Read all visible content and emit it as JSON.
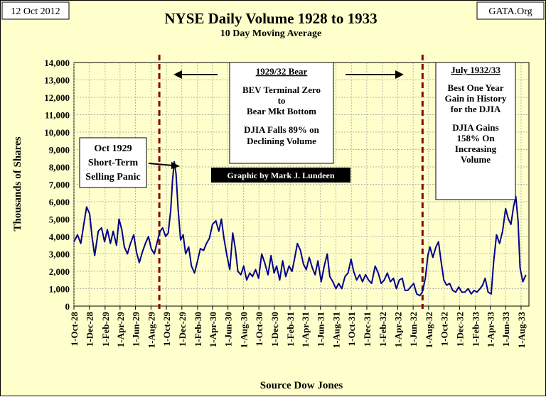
{
  "header": {
    "date": "12 Oct 2012",
    "brand": "GATA.Org"
  },
  "chart_data": {
    "type": "line",
    "title": "NYSE Daily Volume 1928 to 1933",
    "subtitle": "10 Day Moving Average",
    "ylabel": "Thousands of Shares",
    "xlabel": "Source Dow Jones",
    "ylim": [
      0,
      14000
    ],
    "yticks": [
      "0",
      "1,000",
      "2,000",
      "3,000",
      "4,000",
      "5,000",
      "6,000",
      "7,000",
      "8,000",
      "9,000",
      "10,000",
      "11,000",
      "12,000",
      "13,000",
      "14,000"
    ],
    "xlim": [
      "1928-10-01",
      "1933-09-01"
    ],
    "x_tick_labels": [
      "1-Oct-28",
      "1-Dec-28",
      "1-Feb-29",
      "1-Apr-29",
      "1-Jun-29",
      "1-Aug-29",
      "1-Oct-29",
      "1-Dec-29",
      "1-Feb-30",
      "1-Apr-30",
      "1-Jun-30",
      "1-Aug-30",
      "1-Oct-30",
      "1-Dec-30",
      "1-Feb-31",
      "1-Apr-31",
      "1-Jun-31",
      "1-Aug-31",
      "1-Oct-31",
      "1-Dec-31",
      "1-Feb-32",
      "1-Apr-32",
      "1-Jun-32",
      "1-Aug-32",
      "1-Oct-32",
      "1-Dec-32",
      "1-Feb-33",
      "1-Apr-33",
      "1-Jun-33",
      "1-Aug-33"
    ],
    "grid": true,
    "series": [
      {
        "color": "#00008b",
        "points": [
          [
            "1928-10-01",
            3700
          ],
          [
            "1928-10-15",
            4100
          ],
          [
            "1928-10-28",
            3600
          ],
          [
            "1928-11-08",
            4600
          ],
          [
            "1928-11-20",
            5700
          ],
          [
            "1928-12-02",
            5300
          ],
          [
            "1928-12-12",
            3900
          ],
          [
            "1928-12-22",
            2900
          ],
          [
            "1929-01-05",
            4300
          ],
          [
            "1929-01-18",
            4500
          ],
          [
            "1929-01-30",
            3700
          ],
          [
            "1929-02-10",
            4400
          ],
          [
            "1929-02-22",
            3600
          ],
          [
            "1929-03-05",
            4300
          ],
          [
            "1929-03-18",
            3500
          ],
          [
            "1929-03-28",
            5000
          ],
          [
            "1929-04-08",
            4400
          ],
          [
            "1929-04-18",
            3400
          ],
          [
            "1929-04-30",
            3000
          ],
          [
            "1929-05-12",
            3600
          ],
          [
            "1929-05-25",
            4100
          ],
          [
            "1929-06-05",
            3100
          ],
          [
            "1929-06-16",
            2500
          ],
          [
            "1929-06-28",
            3100
          ],
          [
            "1929-07-10",
            3600
          ],
          [
            "1929-07-22",
            4000
          ],
          [
            "1929-08-02",
            3300
          ],
          [
            "1929-08-14",
            3000
          ],
          [
            "1929-08-26",
            3700
          ],
          [
            "1929-09-06",
            4300
          ],
          [
            "1929-09-16",
            4500
          ],
          [
            "1929-09-28",
            4000
          ],
          [
            "1929-10-08",
            4200
          ],
          [
            "1929-10-18",
            5500
          ],
          [
            "1929-10-25",
            7200
          ],
          [
            "1929-11-01",
            8300
          ],
          [
            "1929-11-08",
            7600
          ],
          [
            "1929-11-16",
            5600
          ],
          [
            "1929-11-26",
            3800
          ],
          [
            "1929-12-06",
            4100
          ],
          [
            "1929-12-16",
            3000
          ],
          [
            "1929-12-28",
            3400
          ],
          [
            "1930-01-08",
            2300
          ],
          [
            "1930-01-20",
            1900
          ],
          [
            "1930-02-01",
            2600
          ],
          [
            "1930-02-12",
            3300
          ],
          [
            "1930-02-25",
            3200
          ],
          [
            "1930-03-08",
            3600
          ],
          [
            "1930-03-20",
            3900
          ],
          [
            "1930-04-01",
            4700
          ],
          [
            "1930-04-14",
            4900
          ],
          [
            "1930-04-26",
            4300
          ],
          [
            "1930-05-06",
            5000
          ],
          [
            "1930-05-16",
            3900
          ],
          [
            "1930-05-28",
            2900
          ],
          [
            "1930-06-08",
            2100
          ],
          [
            "1930-06-20",
            4200
          ],
          [
            "1930-06-30",
            3300
          ],
          [
            "1930-07-10",
            2000
          ],
          [
            "1930-07-22",
            1800
          ],
          [
            "1930-08-02",
            2300
          ],
          [
            "1930-08-14",
            1500
          ],
          [
            "1930-08-26",
            1900
          ],
          [
            "1930-09-06",
            1700
          ],
          [
            "1930-09-18",
            2100
          ],
          [
            "1930-09-30",
            1600
          ],
          [
            "1930-10-12",
            3000
          ],
          [
            "1930-10-24",
            2500
          ],
          [
            "1930-11-06",
            1800
          ],
          [
            "1930-11-18",
            2900
          ],
          [
            "1930-11-30",
            1900
          ],
          [
            "1930-12-10",
            2300
          ],
          [
            "1930-12-22",
            1500
          ],
          [
            "1931-01-03",
            2600
          ],
          [
            "1931-01-15",
            1700
          ],
          [
            "1931-01-28",
            2300
          ],
          [
            "1931-02-09",
            2000
          ],
          [
            "1931-02-20",
            2800
          ],
          [
            "1931-03-02",
            3600
          ],
          [
            "1931-03-14",
            3200
          ],
          [
            "1931-03-26",
            2400
          ],
          [
            "1931-04-06",
            2100
          ],
          [
            "1931-04-18",
            2800
          ],
          [
            "1931-04-30",
            2200
          ],
          [
            "1931-05-11",
            1800
          ],
          [
            "1931-05-22",
            2600
          ],
          [
            "1931-06-04",
            1400
          ],
          [
            "1931-06-16",
            2300
          ],
          [
            "1931-06-28",
            3000
          ],
          [
            "1931-07-08",
            1700
          ],
          [
            "1931-07-20",
            1400
          ],
          [
            "1931-08-01",
            1000
          ],
          [
            "1931-08-12",
            1300
          ],
          [
            "1931-08-24",
            1000
          ],
          [
            "1931-09-06",
            1700
          ],
          [
            "1931-09-18",
            1900
          ],
          [
            "1931-09-30",
            2700
          ],
          [
            "1931-10-10",
            2000
          ],
          [
            "1931-10-22",
            1500
          ],
          [
            "1931-11-03",
            1800
          ],
          [
            "1931-11-14",
            1400
          ],
          [
            "1931-11-26",
            1800
          ],
          [
            "1931-12-08",
            1500
          ],
          [
            "1931-12-20",
            1300
          ],
          [
            "1932-01-03",
            2300
          ],
          [
            "1932-01-15",
            1900
          ],
          [
            "1932-01-27",
            1300
          ],
          [
            "1932-02-08",
            1500
          ],
          [
            "1932-02-20",
            1900
          ],
          [
            "1932-03-03",
            1400
          ],
          [
            "1932-03-15",
            1600
          ],
          [
            "1932-03-27",
            1000
          ],
          [
            "1932-04-07",
            1500
          ],
          [
            "1932-04-19",
            1600
          ],
          [
            "1932-04-30",
            900
          ],
          [
            "1932-05-11",
            900
          ],
          [
            "1932-05-22",
            1100
          ],
          [
            "1932-06-03",
            1300
          ],
          [
            "1932-06-15",
            700
          ],
          [
            "1932-06-27",
            600
          ],
          [
            "1932-07-07",
            800
          ],
          [
            "1932-07-19",
            1600
          ],
          [
            "1932-07-29",
            2900
          ],
          [
            "1932-08-06",
            3400
          ],
          [
            "1932-08-18",
            2800
          ],
          [
            "1932-08-30",
            3400
          ],
          [
            "1932-09-09",
            3700
          ],
          [
            "1932-09-19",
            2600
          ],
          [
            "1932-09-30",
            1500
          ],
          [
            "1932-10-11",
            1200
          ],
          [
            "1932-10-23",
            1300
          ],
          [
            "1932-11-04",
            900
          ],
          [
            "1932-11-16",
            800
          ],
          [
            "1932-11-28",
            1100
          ],
          [
            "1932-12-10",
            800
          ],
          [
            "1932-12-22",
            800
          ],
          [
            "1933-01-04",
            1000
          ],
          [
            "1933-01-16",
            700
          ],
          [
            "1933-01-28",
            900
          ],
          [
            "1933-02-08",
            800
          ],
          [
            "1933-02-20",
            1000
          ],
          [
            "1933-03-02",
            1200
          ],
          [
            "1933-03-12",
            1600
          ],
          [
            "1933-03-24",
            800
          ],
          [
            "1933-04-05",
            700
          ],
          [
            "1933-04-15",
            2600
          ],
          [
            "1933-04-26",
            4100
          ],
          [
            "1933-05-08",
            3600
          ],
          [
            "1933-05-20",
            4300
          ],
          [
            "1933-06-01",
            5600
          ],
          [
            "1933-06-12",
            5000
          ],
          [
            "1933-06-22",
            4700
          ],
          [
            "1933-07-02",
            5700
          ],
          [
            "1933-07-11",
            6300
          ],
          [
            "1933-07-20",
            4900
          ],
          [
            "1933-07-28",
            2200
          ],
          [
            "1933-08-08",
            1400
          ],
          [
            "1933-08-20",
            1800
          ]
        ]
      }
    ],
    "reference_lines": [
      {
        "x": "1929-09-03",
        "color": "#8b0000"
      },
      {
        "x": "1932-07-08",
        "color": "#8b0000"
      }
    ],
    "annotations": {
      "oct1929": [
        "Oct 1929",
        "Short-Term",
        "Selling Panic"
      ],
      "bear": {
        "heading": "1929/32 Bear",
        "lines": [
          "BEV Terminal Zero",
          "to",
          "Bear Mkt Bottom",
          "",
          "DJIA Falls 89% on",
          "Declining Volume"
        ]
      },
      "bull": {
        "heading": "July 1932/33",
        "lines": [
          "Best One Year",
          "Gain in History",
          "for the DJIA",
          "",
          "DJIA Gains",
          "158% On",
          "Increasing",
          "Volume"
        ]
      },
      "credit": "Graphic by Mark J. Lundeen"
    }
  }
}
